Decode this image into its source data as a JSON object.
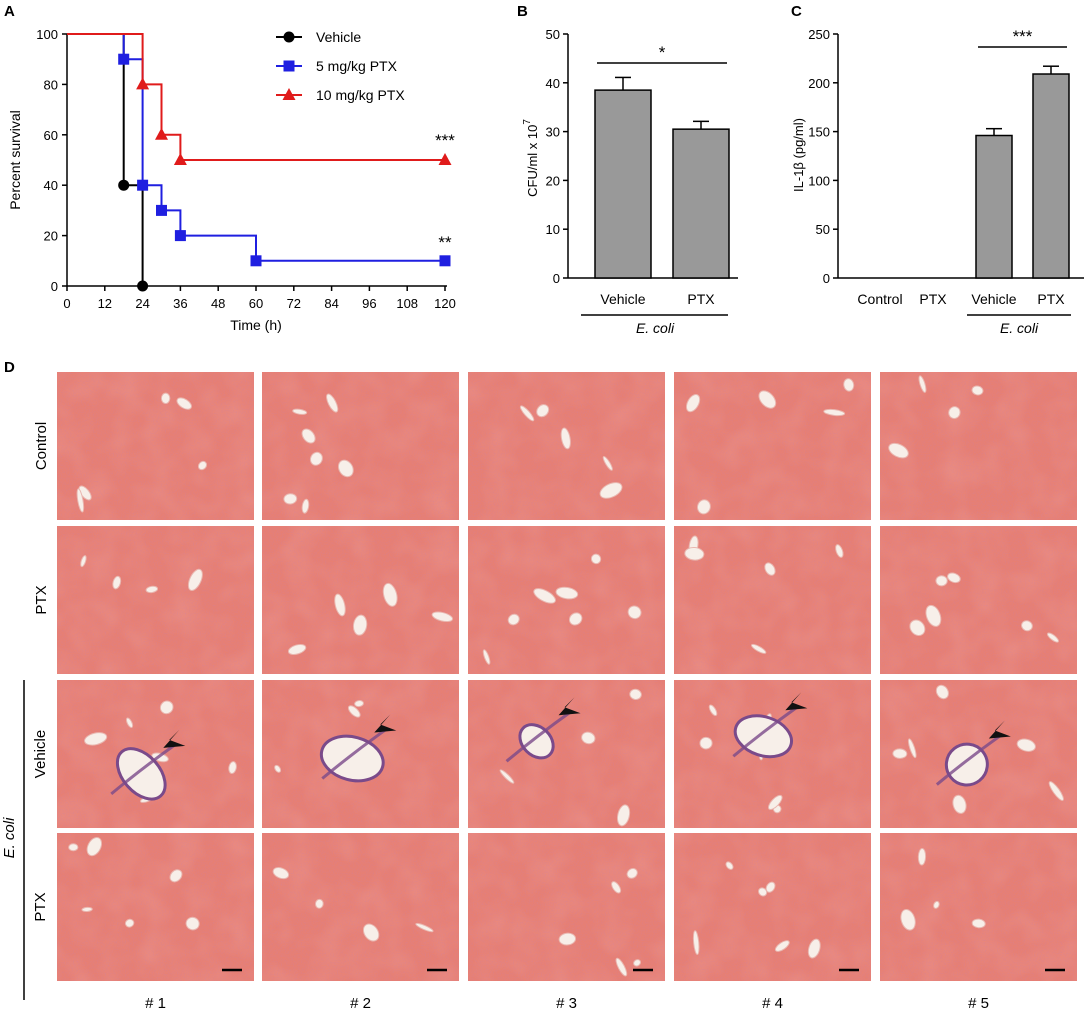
{
  "figure": {
    "panel_labels": [
      "A",
      "B",
      "C",
      "D"
    ],
    "colors": {
      "vehicle": "#000000",
      "ptx5": "#1f1fe0",
      "ptx10": "#e01b1b",
      "bar": "#999999",
      "tissue_base": "#e77f73",
      "tissue_dark": "#c95a6a",
      "stain_purple": "#7a4a8a",
      "lumen": "#f7efe9",
      "arrowhead": "#111111"
    }
  },
  "chart_data": [
    {
      "panel": "A",
      "type": "line",
      "title": "",
      "xlabel": "Time (h)",
      "ylabel": "Percent survival",
      "xlim": [
        0,
        120
      ],
      "ylim": [
        0,
        100
      ],
      "xticks": [
        0,
        12,
        24,
        36,
        48,
        60,
        72,
        84,
        96,
        108,
        120
      ],
      "yticks": [
        0,
        20,
        40,
        60,
        80,
        100
      ],
      "legend_position": "top-right",
      "series": [
        {
          "name": "Vehicle",
          "color": "#000000",
          "marker": "circle",
          "steps": [
            [
              0,
              100
            ],
            [
              18,
              100
            ],
            [
              18,
              40
            ],
            [
              24,
              40
            ],
            [
              24,
              0
            ]
          ],
          "markers": [
            [
              18,
              40
            ],
            [
              24,
              0
            ]
          ]
        },
        {
          "name": "5 mg/kg PTX",
          "color": "#1f1fe0",
          "marker": "square",
          "steps": [
            [
              0,
              100
            ],
            [
              18,
              100
            ],
            [
              18,
              90
            ],
            [
              24,
              90
            ],
            [
              24,
              40
            ],
            [
              30,
              40
            ],
            [
              30,
              30
            ],
            [
              36,
              30
            ],
            [
              36,
              20
            ],
            [
              60,
              20
            ],
            [
              60,
              10
            ],
            [
              120,
              10
            ]
          ],
          "markers": [
            [
              18,
              90
            ],
            [
              24,
              40
            ],
            [
              30,
              30
            ],
            [
              36,
              20
            ],
            [
              60,
              10
            ],
            [
              120,
              10
            ]
          ]
        },
        {
          "name": "10 mg/kg PTX",
          "color": "#e01b1b",
          "marker": "triangle",
          "steps": [
            [
              0,
              100
            ],
            [
              24,
              100
            ],
            [
              24,
              80
            ],
            [
              30,
              80
            ],
            [
              30,
              60
            ],
            [
              36,
              60
            ],
            [
              36,
              50
            ],
            [
              120,
              50
            ]
          ],
          "markers": [
            [
              24,
              80
            ],
            [
              30,
              60
            ],
            [
              36,
              50
            ],
            [
              120,
              50
            ]
          ]
        }
      ],
      "annotations": [
        {
          "text": "***",
          "series": "10 mg/kg PTX"
        },
        {
          "text": "**",
          "series": "5 mg/kg PTX"
        }
      ]
    },
    {
      "panel": "B",
      "type": "bar",
      "title": "",
      "ylabel": "CFU/ml x 10",
      "ylabel_superscript": "7",
      "categories": [
        "Vehicle",
        "PTX"
      ],
      "values": [
        38.5,
        30.5
      ],
      "errors": [
        2.6,
        1.6
      ],
      "ylim": [
        0,
        50
      ],
      "yticks": [
        0,
        10,
        20,
        30,
        40,
        50
      ],
      "group_label": "E. coli",
      "significance": [
        {
          "from": 0,
          "to": 1,
          "text": "*"
        }
      ]
    },
    {
      "panel": "C",
      "type": "bar",
      "title": "",
      "ylabel": "IL-1β (pg/ml)",
      "categories": [
        "Control",
        "PTX",
        "Vehicle",
        "PTX"
      ],
      "values": [
        0,
        0,
        146,
        209
      ],
      "errors": [
        0,
        0,
        7,
        8
      ],
      "ylim": [
        0,
        250
      ],
      "yticks": [
        0,
        50,
        100,
        150,
        200,
        250
      ],
      "group_label": "E. coli",
      "group_span": [
        2,
        3
      ],
      "significance": [
        {
          "from": 2,
          "to": 3,
          "text": "***"
        }
      ]
    }
  ],
  "histology": {
    "panel": "D",
    "row_labels": [
      "Control",
      "PTX",
      "Vehicle",
      "PTX"
    ],
    "row_group_label": "E. coli",
    "row_group_rows": [
      2,
      3
    ],
    "column_labels": [
      "# 1",
      "# 2",
      "# 3",
      "# 4",
      "# 5"
    ],
    "arrowheads_row": 2
  }
}
